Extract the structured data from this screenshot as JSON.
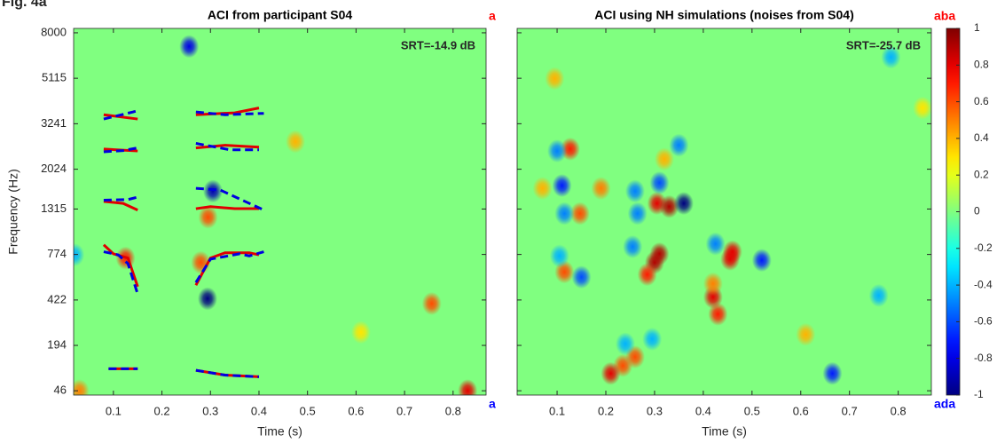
{
  "figure_label": "Fig. 4a",
  "chart_data": [
    {
      "type": "heatmap",
      "title": "ACI from participant S04",
      "annotation": "SRT=-14.9 dB",
      "xlabel": "Time (s)",
      "ylabel": "Frequency (Hz)",
      "xlim": [
        0.018,
        0.868
      ],
      "xticks": [
        0.1,
        0.2,
        0.3,
        0.4,
        0.5,
        0.6,
        0.7,
        0.8
      ],
      "ylim": [
        35,
        8350
      ],
      "yscale": "erb",
      "yticks": [
        46,
        194,
        422,
        774,
        1315,
        2024,
        3241,
        5115,
        8000
      ],
      "show_ytick_labels": true,
      "background": 0,
      "top_label": {
        "text": "a",
        "color": "#ff0000"
      },
      "bottom_label": {
        "text": "a",
        "color": "#0000ff"
      },
      "blobs": [
        {
          "t": 0.256,
          "f": 7000,
          "v": -0.8
        },
        {
          "t": 0.305,
          "f": 1600,
          "v": -0.9
        },
        {
          "t": 0.295,
          "f": 1200,
          "v": 0.6
        },
        {
          "t": 0.294,
          "f": 430,
          "v": -1
        },
        {
          "t": 0.28,
          "f": 700,
          "v": 0.6
        },
        {
          "t": 0.125,
          "f": 740,
          "v": 0.7
        },
        {
          "t": 0.02,
          "f": 770,
          "v": -0.4
        },
        {
          "t": 0.475,
          "f": 2700,
          "v": 0.4
        },
        {
          "t": 0.756,
          "f": 400,
          "v": 0.6
        },
        {
          "t": 0.83,
          "f": 46,
          "v": 0.8
        },
        {
          "t": 0.61,
          "f": 250,
          "v": 0.3
        },
        {
          "t": 0.03,
          "f": 46,
          "v": 0.5
        }
      ],
      "lines": [
        {
          "color": "#e00000",
          "dashed": false,
          "x": [
            0.08,
            0.15
          ],
          "y": [
            3550,
            3400
          ]
        },
        {
          "color": "#0000e0",
          "dashed": true,
          "x": [
            0.08,
            0.14,
            0.15
          ],
          "y": [
            3400,
            3650,
            3700
          ]
        },
        {
          "color": "#e00000",
          "dashed": false,
          "x": [
            0.08,
            0.15
          ],
          "y": [
            2500,
            2450
          ]
        },
        {
          "color": "#0000e0",
          "dashed": true,
          "x": [
            0.08,
            0.12,
            0.15
          ],
          "y": [
            2430,
            2460,
            2530
          ]
        },
        {
          "color": "#e00000",
          "dashed": false,
          "x": [
            0.08,
            0.12,
            0.15
          ],
          "y": [
            1430,
            1400,
            1300
          ]
        },
        {
          "color": "#0000e0",
          "dashed": true,
          "x": [
            0.08,
            0.13,
            0.15
          ],
          "y": [
            1450,
            1460,
            1500
          ]
        },
        {
          "color": "#e00000",
          "dashed": false,
          "x": [
            0.08,
            0.1,
            0.13,
            0.15
          ],
          "y": [
            870,
            780,
            740,
            510
          ]
        },
        {
          "color": "#0000e0",
          "dashed": true,
          "x": [
            0.08,
            0.11,
            0.13,
            0.15
          ],
          "y": [
            800,
            770,
            690,
            460
          ]
        },
        {
          "color": "#e00000",
          "dashed": false,
          "x": [
            0.09,
            0.15
          ],
          "y": [
            110,
            110
          ]
        },
        {
          "color": "#0000e0",
          "dashed": true,
          "x": [
            0.09,
            0.15
          ],
          "y": [
            110,
            110
          ]
        },
        {
          "color": "#e00000",
          "dashed": false,
          "x": [
            0.27,
            0.35,
            0.4
          ],
          "y": [
            3550,
            3620,
            3800
          ]
        },
        {
          "color": "#0000e0",
          "dashed": true,
          "x": [
            0.27,
            0.33,
            0.41
          ],
          "y": [
            3650,
            3550,
            3600
          ]
        },
        {
          "color": "#e00000",
          "dashed": false,
          "x": [
            0.27,
            0.33,
            0.4
          ],
          "y": [
            2530,
            2600,
            2550
          ]
        },
        {
          "color": "#0000e0",
          "dashed": true,
          "x": [
            0.27,
            0.34,
            0.4
          ],
          "y": [
            2650,
            2480,
            2480
          ]
        },
        {
          "color": "#e00000",
          "dashed": false,
          "x": [
            0.27,
            0.3,
            0.35,
            0.4
          ],
          "y": [
            1320,
            1350,
            1320,
            1320
          ]
        },
        {
          "color": "#0000e0",
          "dashed": true,
          "x": [
            0.27,
            0.32,
            0.41
          ],
          "y": [
            1650,
            1620,
            1300
          ]
        },
        {
          "color": "#e00000",
          "dashed": false,
          "x": [
            0.27,
            0.3,
            0.33,
            0.38,
            0.4
          ],
          "y": [
            520,
            740,
            790,
            790,
            770
          ]
        },
        {
          "color": "#0000e0",
          "dashed": true,
          "x": [
            0.27,
            0.3,
            0.36,
            0.38,
            0.41
          ],
          "y": [
            540,
            730,
            780,
            760,
            800
          ]
        },
        {
          "color": "#e00000",
          "dashed": false,
          "x": [
            0.27,
            0.33,
            0.4
          ],
          "y": [
            105,
            90,
            85
          ]
        },
        {
          "color": "#0000e0",
          "dashed": true,
          "x": [
            0.27,
            0.33,
            0.4
          ],
          "y": [
            105,
            90,
            85
          ]
        }
      ]
    },
    {
      "type": "heatmap",
      "title": "ACI using NH simulations (noises from S04)",
      "annotation": "SRT=-25.7 dB",
      "xlabel": "Time (s)",
      "xlim": [
        0.018,
        0.868
      ],
      "xticks": [
        0.1,
        0.2,
        0.3,
        0.4,
        0.5,
        0.6,
        0.7,
        0.8
      ],
      "ylim": [
        35,
        8350
      ],
      "yscale": "erb",
      "yticks": [
        46,
        194,
        422,
        774,
        1315,
        2024,
        3241,
        5115,
        8000
      ],
      "show_ytick_labels": false,
      "background": 0,
      "top_label": {
        "text": "aba",
        "color": "#ff0000"
      },
      "bottom_label": {
        "text": "ada",
        "color": "#0000ff"
      },
      "colorbar": {
        "lim": [
          -1,
          1
        ],
        "ticks": [
          -1,
          -0.8,
          -0.6,
          -0.4,
          -0.2,
          0,
          0.2,
          0.4,
          0.6,
          0.8,
          1
        ]
      },
      "blobs": [
        {
          "t": 0.127,
          "f": 2500,
          "v": 0.7
        },
        {
          "t": 0.1,
          "f": 2450,
          "v": -0.5
        },
        {
          "t": 0.11,
          "f": 1700,
          "v": -0.7
        },
        {
          "t": 0.07,
          "f": 1650,
          "v": 0.4
        },
        {
          "t": 0.19,
          "f": 1650,
          "v": 0.5
        },
        {
          "t": 0.147,
          "f": 1250,
          "v": 0.6
        },
        {
          "t": 0.115,
          "f": 1250,
          "v": -0.5
        },
        {
          "t": 0.26,
          "f": 1600,
          "v": -0.5
        },
        {
          "t": 0.31,
          "f": 1750,
          "v": -0.6
        },
        {
          "t": 0.32,
          "f": 2250,
          "v": 0.4
        },
        {
          "t": 0.35,
          "f": 2600,
          "v": -0.5
        },
        {
          "t": 0.305,
          "f": 1400,
          "v": 0.8
        },
        {
          "t": 0.33,
          "f": 1350,
          "v": 0.9
        },
        {
          "t": 0.36,
          "f": 1400,
          "v": -1
        },
        {
          "t": 0.265,
          "f": 1250,
          "v": -0.5
        },
        {
          "t": 0.3,
          "f": 700,
          "v": 0.9
        },
        {
          "t": 0.31,
          "f": 780,
          "v": 0.9
        },
        {
          "t": 0.285,
          "f": 600,
          "v": 0.7
        },
        {
          "t": 0.255,
          "f": 850,
          "v": -0.5
        },
        {
          "t": 0.425,
          "f": 880,
          "v": -0.5
        },
        {
          "t": 0.46,
          "f": 800,
          "v": 0.8
        },
        {
          "t": 0.455,
          "f": 730,
          "v": 0.8
        },
        {
          "t": 0.52,
          "f": 720,
          "v": -0.7
        },
        {
          "t": 0.42,
          "f": 440,
          "v": 0.8
        },
        {
          "t": 0.43,
          "f": 340,
          "v": 0.7
        },
        {
          "t": 0.42,
          "f": 530,
          "v": 0.5
        },
        {
          "t": 0.115,
          "f": 620,
          "v": 0.6
        },
        {
          "t": 0.15,
          "f": 580,
          "v": -0.6
        },
        {
          "t": 0.105,
          "f": 760,
          "v": -0.4
        },
        {
          "t": 0.295,
          "f": 220,
          "v": -0.4
        },
        {
          "t": 0.26,
          "f": 150,
          "v": 0.6
        },
        {
          "t": 0.235,
          "f": 120,
          "v": 0.6
        },
        {
          "t": 0.21,
          "f": 95,
          "v": 0.8
        },
        {
          "t": 0.24,
          "f": 200,
          "v": -0.4
        },
        {
          "t": 0.665,
          "f": 95,
          "v": -0.7
        },
        {
          "t": 0.61,
          "f": 240,
          "v": 0.4
        },
        {
          "t": 0.785,
          "f": 6300,
          "v": -0.4
        },
        {
          "t": 0.76,
          "f": 450,
          "v": -0.4
        },
        {
          "t": 0.095,
          "f": 5100,
          "v": 0.4
        },
        {
          "t": 0.85,
          "f": 3800,
          "v": 0.3
        }
      ],
      "lines": []
    }
  ]
}
